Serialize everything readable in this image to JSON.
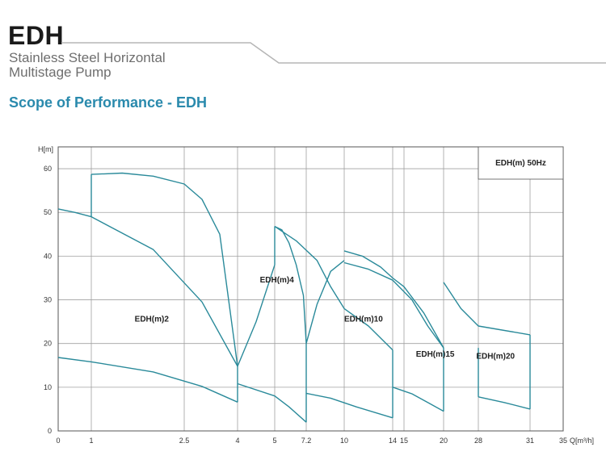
{
  "header": {
    "brand": "EDH",
    "subtitle_line1": "Stainless Steel Horizontal",
    "subtitle_line2": "Multistage Pump",
    "section_title": "Scope of Performance - EDH"
  },
  "chart_data": {
    "type": "line",
    "title": "EDH(m)  50Hz",
    "ylabel": "H[m]",
    "xlabel": "Q[m³/h]",
    "ylim": [
      0,
      65
    ],
    "grid": true,
    "x_ticks": [
      "0",
      "1",
      "2.5",
      "4",
      "5",
      "7.2",
      "10",
      "14",
      "15",
      "20",
      "28",
      "31",
      "35"
    ],
    "y_ticks": [
      0,
      10,
      20,
      30,
      40,
      50,
      60
    ],
    "colors": {
      "curve": "#2a8a9a",
      "grid": "#a0a0a0",
      "axis": "#555555"
    },
    "regions": [
      {
        "name": "EDH(m)2",
        "label_at": {
          "x": 1.7,
          "y": 25
        },
        "top": [
          [
            1,
            58.7
          ],
          [
            1.5,
            59.0
          ],
          [
            2,
            58.3
          ],
          [
            2.5,
            56.5
          ],
          [
            3,
            53.0
          ],
          [
            3.5,
            45.0
          ],
          [
            4,
            14.8
          ]
        ],
        "bottom": [
          [
            0,
            16.8
          ],
          [
            1,
            15.8
          ],
          [
            2,
            13.5
          ],
          [
            3,
            10.2
          ],
          [
            4,
            6.6
          ]
        ],
        "left_edge": [
          [
            1,
            49
          ],
          [
            1,
            58.7
          ]
        ],
        "lower_left": [
          [
            0,
            50.8
          ],
          [
            0.5,
            50.0
          ],
          [
            1,
            49.0
          ],
          [
            2,
            41.5
          ],
          [
            3,
            29.5
          ],
          [
            4,
            14.8
          ]
        ],
        "right_edge": [
          [
            4,
            6.6
          ],
          [
            4,
            14.8
          ]
        ]
      },
      {
        "name": "EDH(m)4",
        "label_at": {
          "x": 4.6,
          "y": 34
        },
        "top": [
          [
            5,
            46.8
          ],
          [
            5.5,
            46.0
          ],
          [
            6,
            43.0
          ],
          [
            6.5,
            38.0
          ],
          [
            7,
            31.0
          ],
          [
            7.2,
            20.0
          ]
        ],
        "bottom": [
          [
            4,
            10.8
          ],
          [
            5,
            8.0
          ],
          [
            6,
            5.5
          ],
          [
            7.2,
            2.0
          ]
        ],
        "lower_left": [
          [
            4,
            14.8
          ],
          [
            4.5,
            25.0
          ],
          [
            5,
            38.0
          ]
        ],
        "left_edge": [
          [
            5,
            38.0
          ],
          [
            5,
            46.8
          ]
        ],
        "right_edge": [
          [
            7.2,
            2.0
          ],
          [
            7.2,
            20.0
          ]
        ]
      },
      {
        "name": "EDH(m)10",
        "label_at": {
          "x": 10,
          "y": 25
        },
        "top": [
          [
            10,
            41.2
          ],
          [
            11.5,
            40.0
          ],
          [
            13,
            37.5
          ],
          [
            14,
            35.0
          ],
          [
            15,
            33.0
          ],
          [
            17.5,
            27.0
          ],
          [
            20,
            19.0
          ]
        ],
        "bottom": [
          [
            7.2,
            8.6
          ],
          [
            9,
            7.5
          ],
          [
            11,
            5.5
          ],
          [
            14,
            3.0
          ]
        ],
        "mid_top": [
          [
            5,
            46.8
          ],
          [
            6.5,
            43.5
          ],
          [
            8,
            39.0
          ],
          [
            9,
            33.0
          ],
          [
            10,
            28.0
          ],
          [
            12,
            24.0
          ],
          [
            14,
            18.5
          ]
        ],
        "lower_left": [
          [
            7.2,
            20.0
          ],
          [
            8,
            29.0
          ],
          [
            9,
            36.5
          ],
          [
            10,
            39.0
          ]
        ],
        "right_edge": [
          [
            14,
            3.0
          ],
          [
            14,
            18.5
          ]
        ]
      },
      {
        "name": "EDH(m)15",
        "label_at": {
          "x": 16.5,
          "y": 17
        },
        "top": [
          [
            10,
            38.5
          ],
          [
            12,
            37.0
          ],
          [
            14,
            34.5
          ],
          [
            16,
            30.0
          ],
          [
            18,
            24.0
          ],
          [
            20,
            19.0
          ]
        ],
        "bottom": [
          [
            14,
            10.0
          ],
          [
            16,
            8.5
          ],
          [
            18,
            6.5
          ],
          [
            20,
            4.5
          ]
        ],
        "right_edge": [
          [
            20,
            4.5
          ],
          [
            20,
            19.0
          ]
        ]
      },
      {
        "name": "EDH(m)20",
        "label_at": {
          "x": 27.5,
          "y": 16.5
        },
        "top": [
          [
            20,
            34.0
          ],
          [
            24,
            28.0
          ],
          [
            28,
            24.0
          ],
          [
            31,
            22.0
          ]
        ],
        "bottom": [
          [
            28,
            7.8
          ],
          [
            29.5,
            6.5
          ],
          [
            31,
            5.0
          ]
        ],
        "left_edge": [
          [
            28,
            7.8
          ],
          [
            28,
            19.0
          ]
        ],
        "right_edge": [
          [
            31,
            5.0
          ],
          [
            31,
            22.0
          ]
        ]
      }
    ]
  }
}
